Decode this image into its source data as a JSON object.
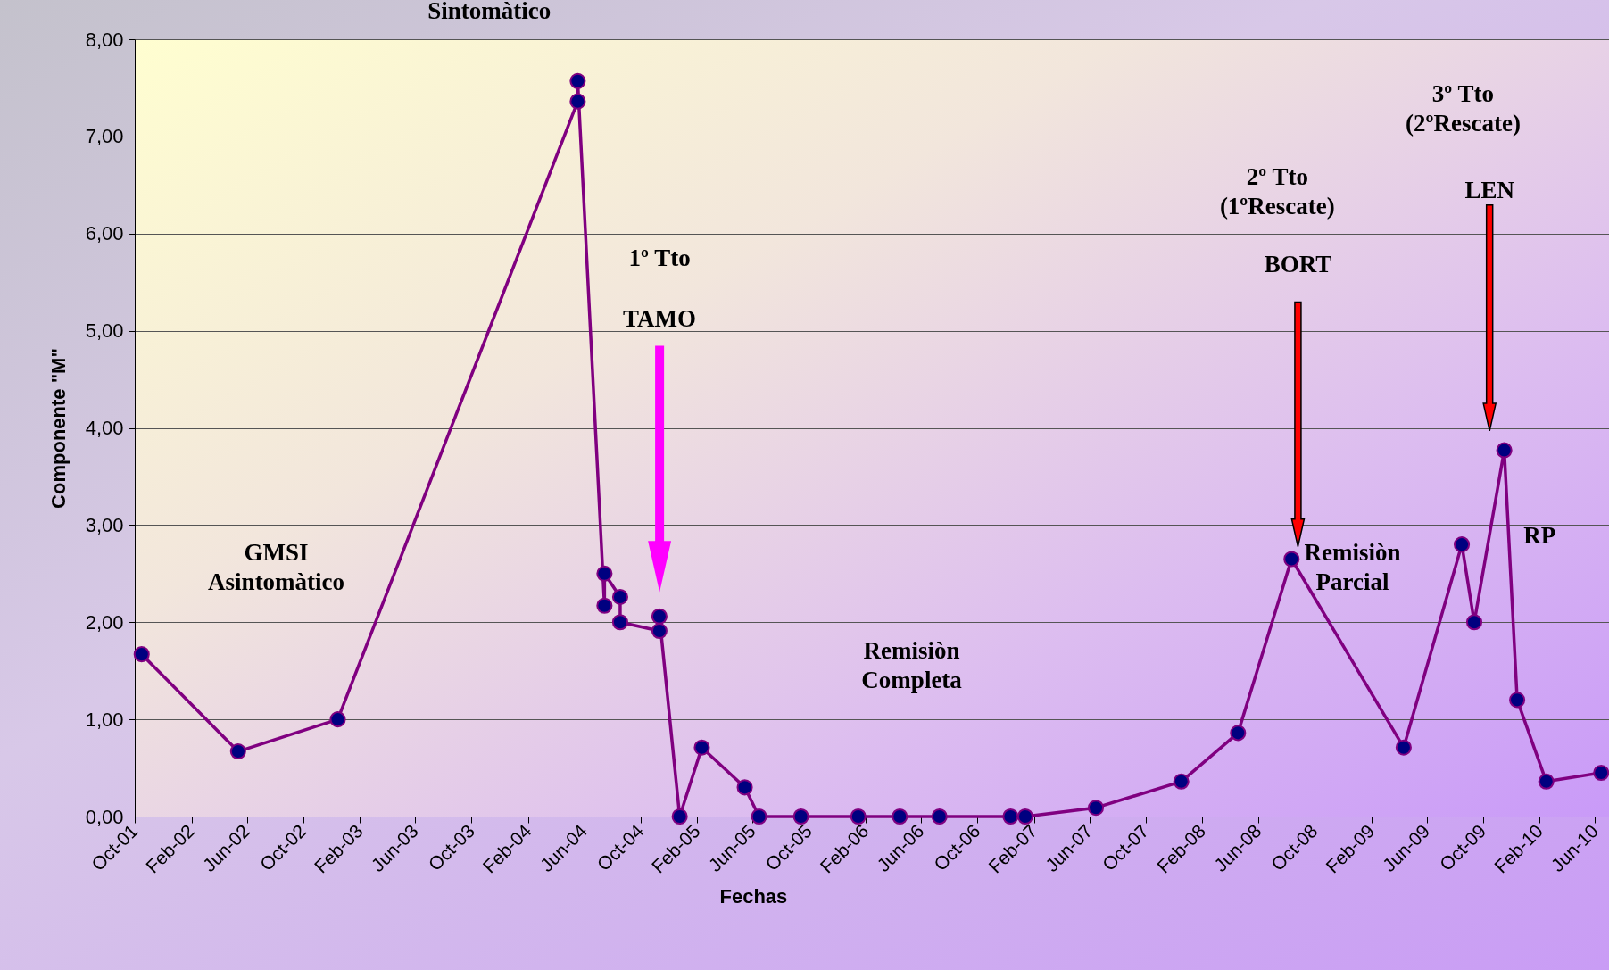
{
  "chart_data": {
    "type": "line",
    "title": "Sintomàtico",
    "xlabel": "Fechas",
    "ylabel": "Componente \"M\"",
    "x": [
      "2001-10-16",
      "2002-05-13",
      "2002-12-15",
      "2004-05-18",
      "2004-05-18",
      "2004-07-15",
      "2004-07-15",
      "2004-08-18",
      "2004-08-18",
      "2004-11-11",
      "2004-11-11",
      "2004-12-25",
      "2005-02-11",
      "2005-05-15",
      "2005-06-15",
      "2005-09-14",
      "2006-01-16",
      "2006-04-16",
      "2006-07-11",
      "2006-12-12",
      "2007-01-13",
      "2007-06-15",
      "2007-12-17",
      "2008-04-18",
      "2008-08-12",
      "2009-04-12",
      "2009-08-16",
      "2009-09-12",
      "2009-11-16",
      "2009-12-14",
      "2010-02-15",
      "2010-06-14"
    ],
    "series": [
      {
        "color": "#800080",
        "values": [
          1.67,
          0.67,
          1.0,
          7.36,
          7.57,
          2.17,
          2.5,
          2.26,
          2.0,
          1.91,
          2.06,
          0,
          0.71,
          0.3,
          0,
          0,
          0,
          0,
          0,
          0,
          0,
          0.09,
          0.36,
          0.86,
          2.65,
          0.71,
          2.8,
          2.0,
          3.77,
          1.2,
          0.36,
          0.45
        ]
      }
    ],
    "marker": "circle",
    "grid": "y",
    "ylim": [
      0,
      8
    ],
    "yticks": [
      {
        "value": 0,
        "label": "0,00"
      },
      {
        "value": 1,
        "label": "1,00"
      },
      {
        "value": 2,
        "label": "2,00"
      },
      {
        "value": 3,
        "label": "3,00"
      },
      {
        "value": 4,
        "label": "4,00"
      },
      {
        "value": 5,
        "label": "5,00"
      },
      {
        "value": 6,
        "label": "6,00"
      },
      {
        "value": 7,
        "label": "7,00"
      },
      {
        "value": 8,
        "label": "8,00"
      }
    ],
    "xlim": [
      "2001-10-01",
      "2010-07-01"
    ],
    "xticks": [
      {
        "value": "2001-10-01",
        "label": "Oct-01"
      },
      {
        "value": "2002-02-01",
        "label": "Feb-02"
      },
      {
        "value": "2002-06-01",
        "label": "Jun-02"
      },
      {
        "value": "2002-10-01",
        "label": "Oct-02"
      },
      {
        "value": "2003-02-01",
        "label": "Feb-03"
      },
      {
        "value": "2003-06-01",
        "label": "Jun-03"
      },
      {
        "value": "2003-10-01",
        "label": "Oct-03"
      },
      {
        "value": "2004-02-01",
        "label": "Feb-04"
      },
      {
        "value": "2004-06-01",
        "label": "Jun-04"
      },
      {
        "value": "2004-10-01",
        "label": "Oct-04"
      },
      {
        "value": "2005-02-01",
        "label": "Feb-05"
      },
      {
        "value": "2005-06-01",
        "label": "Jun-05"
      },
      {
        "value": "2005-10-01",
        "label": "Oct-05"
      },
      {
        "value": "2006-02-01",
        "label": "Feb-06"
      },
      {
        "value": "2006-06-01",
        "label": "Jun-06"
      },
      {
        "value": "2006-10-01",
        "label": "Oct-06"
      },
      {
        "value": "2007-02-01",
        "label": "Feb-07"
      },
      {
        "value": "2007-06-01",
        "label": "Jun-07"
      },
      {
        "value": "2007-10-01",
        "label": "Oct-07"
      },
      {
        "value": "2008-02-01",
        "label": "Feb-08"
      },
      {
        "value": "2008-06-01",
        "label": "Jun-08"
      },
      {
        "value": "2008-10-01",
        "label": "Oct-08"
      },
      {
        "value": "2009-02-01",
        "label": "Feb-09"
      },
      {
        "value": "2009-06-01",
        "label": "Jun-09"
      },
      {
        "value": "2009-10-01",
        "label": "Oct-09"
      },
      {
        "value": "2010-02-01",
        "label": "Feb-10"
      },
      {
        "value": "2010-06-01",
        "label": "Jun-10"
      }
    ],
    "annotations": [
      "GMSI\nAsintomàtico",
      "1º Tto",
      "TAMO",
      "Remisiòn\nCompleta",
      "2º Tto\n(1ºRescate)",
      "BORT",
      "3º Tto\n(2ºRescate)",
      "LEN",
      "Remisiòn\nParcial",
      "RP"
    ]
  }
}
